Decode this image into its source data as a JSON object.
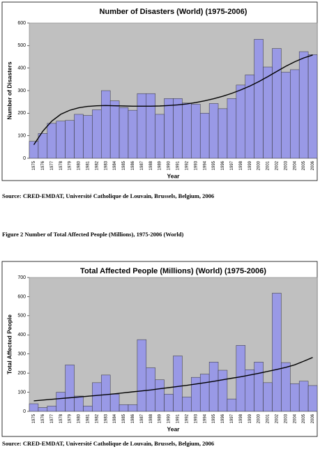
{
  "chart_data": [
    {
      "type": "bar",
      "title": "Number of Disasters (World) (1975-2006)",
      "x_label": "Year",
      "y_label": "Number of Disasters",
      "categories": [
        "1975",
        "1976",
        "1977",
        "1978",
        "1979",
        "1980",
        "1981",
        "1982",
        "1983",
        "1984",
        "1985",
        "1986",
        "1987",
        "1988",
        "1989",
        "1990",
        "1991",
        "1992",
        "1993",
        "1994",
        "1995",
        "1996",
        "1997",
        "1998",
        "1999",
        "2000",
        "2001",
        "2002",
        "2003",
        "2004",
        "2005",
        "2006"
      ],
      "values": [
        75,
        110,
        155,
        165,
        168,
        195,
        190,
        215,
        300,
        255,
        225,
        213,
        287,
        287,
        195,
        265,
        265,
        245,
        240,
        200,
        243,
        220,
        265,
        325,
        370,
        528,
        405,
        487,
        382,
        393,
        473,
        460
      ],
      "trend": [
        60,
        120,
        165,
        195,
        213,
        224,
        230,
        233,
        234,
        233,
        232,
        231,
        231,
        231,
        232,
        234,
        237,
        241,
        247,
        255,
        264,
        275,
        288,
        303,
        320,
        340,
        362,
        385,
        408,
        428,
        445,
        458
      ],
      "color": "#9999e6",
      "ylim": [
        0,
        600
      ],
      "yticks": [
        0,
        100,
        200,
        300,
        400,
        500,
        600
      ]
    },
    {
      "type": "bar",
      "title": "Total Affected People (Millions) (World) (1975-2006)",
      "x_label": "Year",
      "y_label": "Total Affected People",
      "categories": [
        "1975",
        "1976",
        "1977",
        "1978",
        "1979",
        "1980",
        "1981",
        "1982",
        "1983",
        "1984",
        "1985",
        "1986",
        "1987",
        "1988",
        "1989",
        "1990",
        "1991",
        "1992",
        "1993",
        "1994",
        "1995",
        "1996",
        "1997",
        "1998",
        "1999",
        "2000",
        "2001",
        "2002",
        "2003",
        "2004",
        "2005",
        "2006"
      ],
      "values": [
        40,
        20,
        28,
        100,
        243,
        80,
        28,
        150,
        190,
        90,
        35,
        35,
        375,
        228,
        165,
        90,
        290,
        75,
        178,
        195,
        258,
        215,
        65,
        345,
        218,
        258,
        150,
        618,
        255,
        145,
        158,
        135
      ],
      "trend": [
        55,
        59,
        63,
        67,
        71,
        75,
        79,
        83,
        87,
        92,
        97,
        102,
        107,
        112,
        118,
        124,
        130,
        136,
        143,
        150,
        157,
        165,
        173,
        181,
        190,
        199,
        209,
        219,
        230,
        243,
        262,
        282
      ],
      "color": "#9999e6",
      "ylim": [
        0,
        700
      ],
      "yticks": [
        0,
        100,
        200,
        300,
        400,
        500,
        600,
        700
      ]
    }
  ],
  "sources": [
    "Source: CRED-EMDAT, Université Catholique de Louvain, Brussels, Belgium, 2006",
    "Source: CRED-EMDAT, Université Catholique de Louvain, Brussels, Belgium, 2006"
  ],
  "figure_caption": "Figure 2 Number of Total Affected People (Millions), 1975-2006 (World)"
}
